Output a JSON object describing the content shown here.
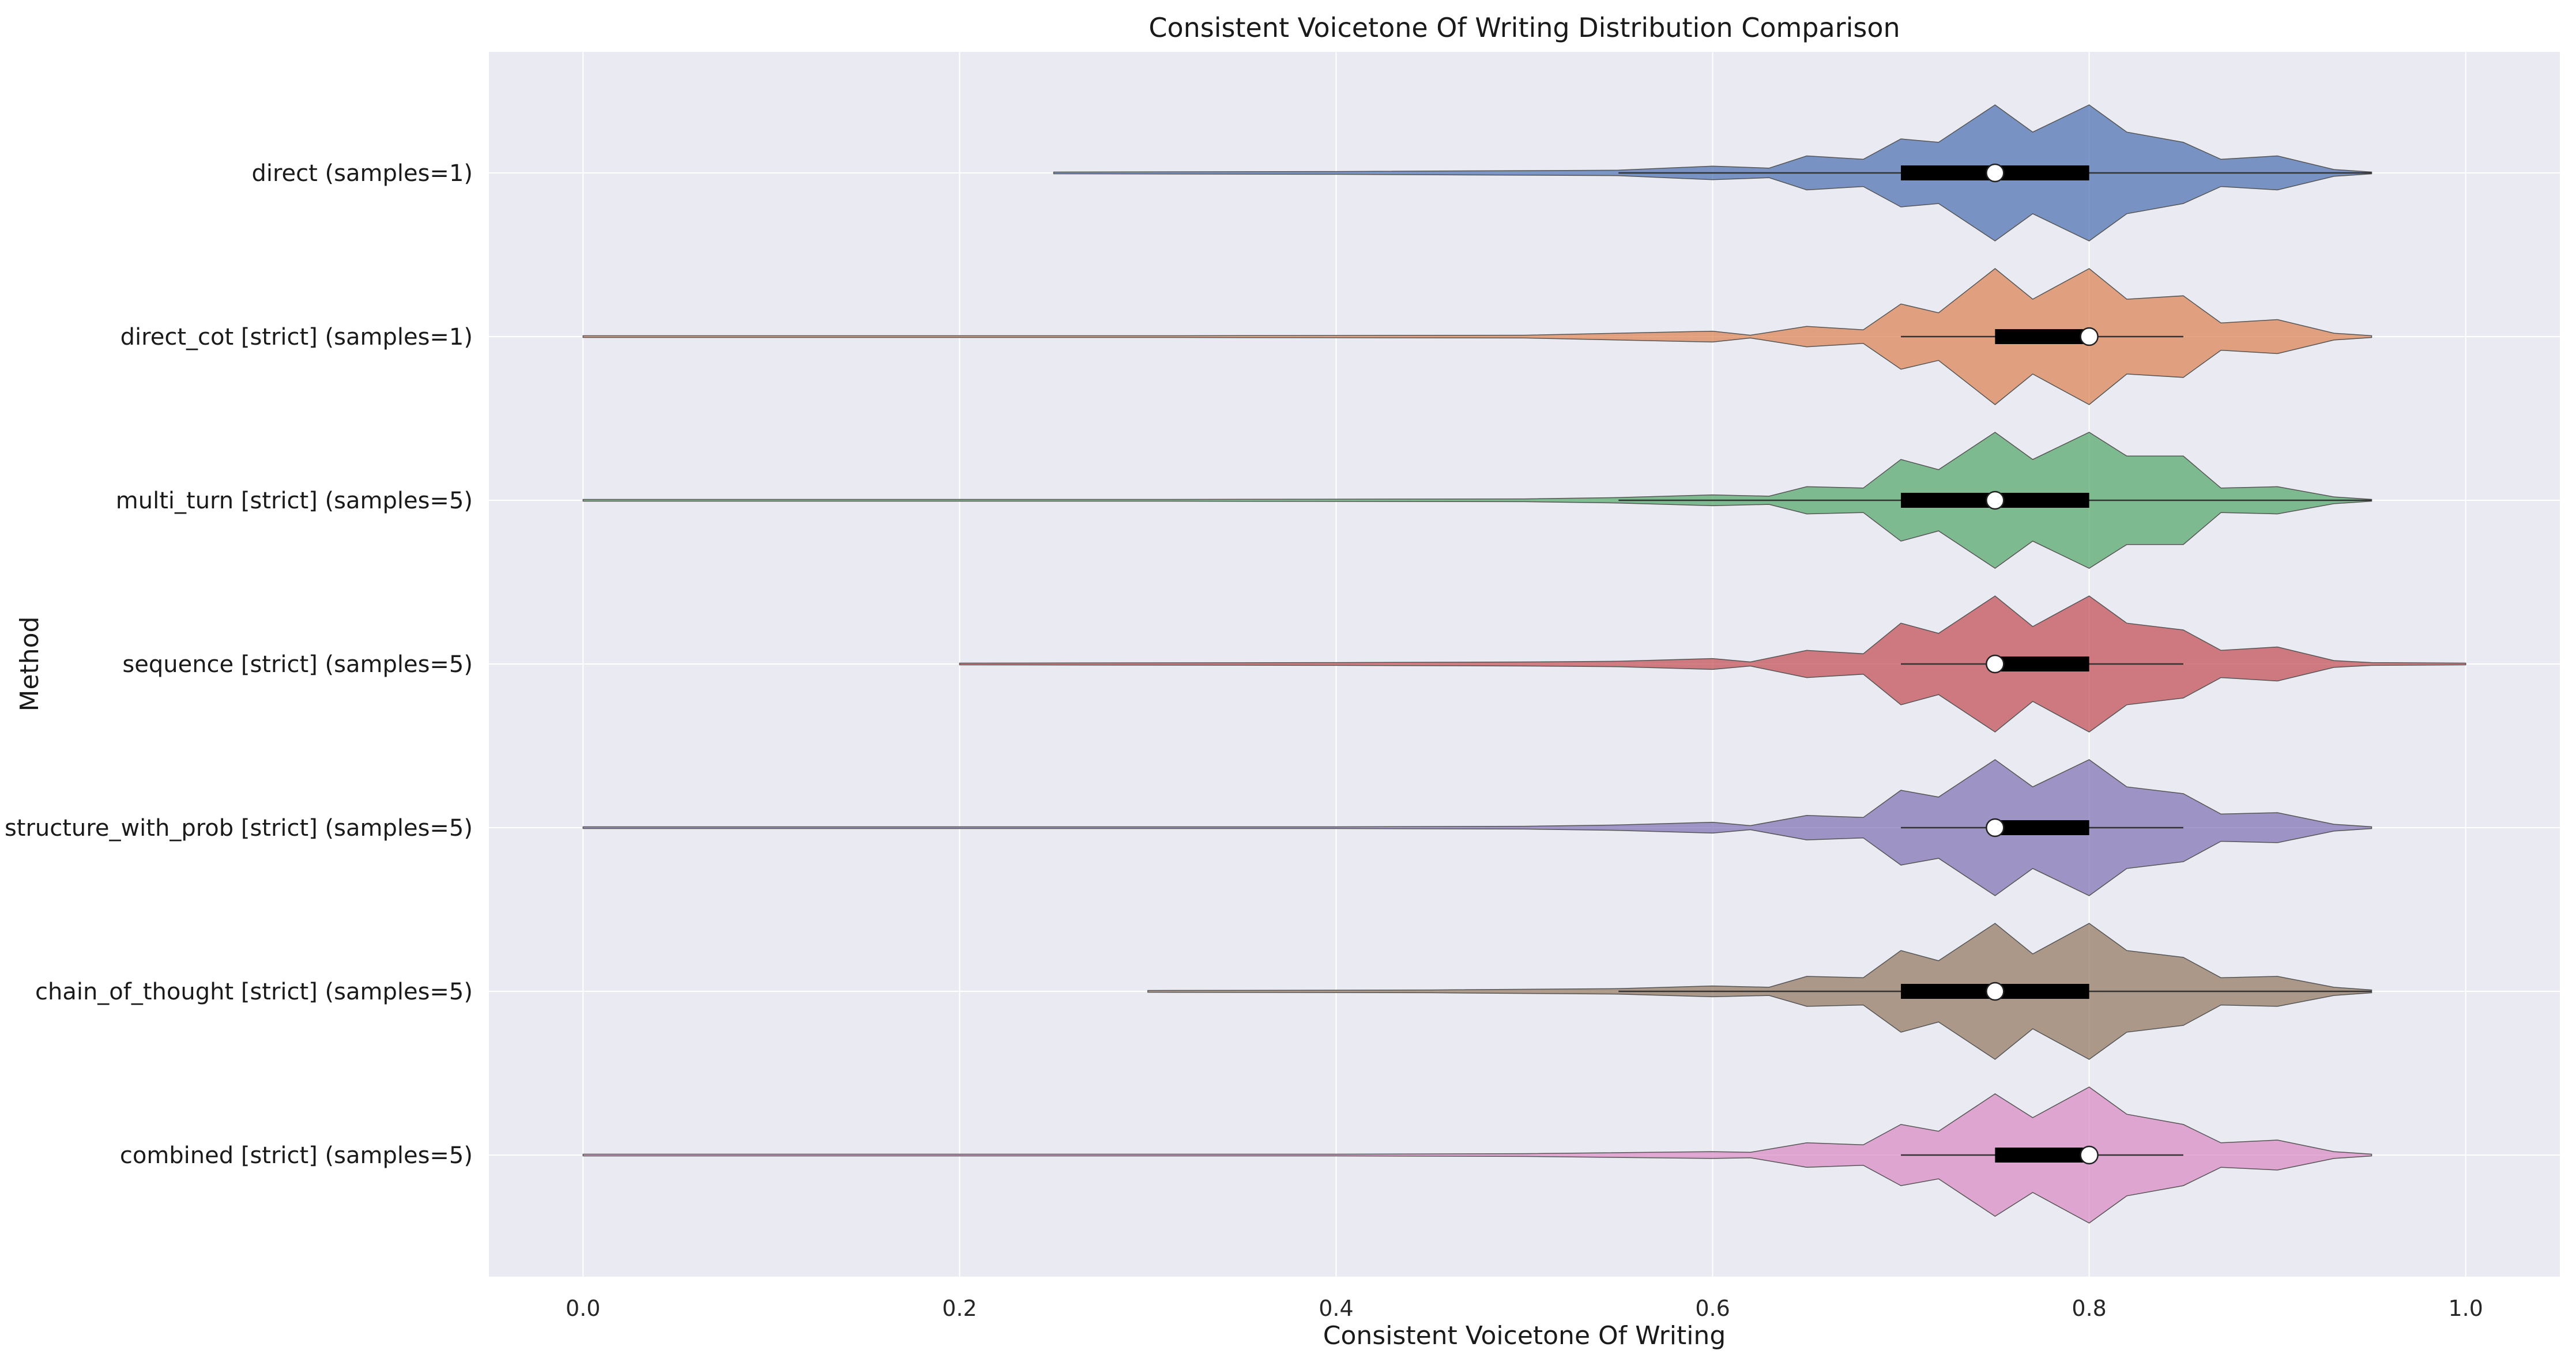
{
  "chart_data": {
    "type": "violin",
    "orientation": "horizontal",
    "title": "Consistent Voicetone Of Writing Distribution Comparison",
    "xlabel": "Consistent Voicetone Of Writing",
    "ylabel": "Method",
    "xlim": [
      -0.05,
      1.05
    ],
    "xticks": [
      0.0,
      0.2,
      0.4,
      0.6,
      0.8,
      1.0
    ],
    "xtick_labels": [
      "0.0",
      "0.2",
      "0.4",
      "0.6",
      "0.8",
      "1.0"
    ],
    "grid": true,
    "background": "#eaeaf2",
    "categories": [
      "direct (samples=1)",
      "direct_cot [strict] (samples=1)",
      "multi_turn [strict] (samples=5)",
      "sequence [strict] (samples=5)",
      "structure_with_prob [strict] (samples=5)",
      "chain_of_thought [strict] (samples=5)",
      "combined [strict] (samples=5)"
    ],
    "series": [
      {
        "color": "#4c72b0",
        "min": 0.25,
        "q1": 0.7,
        "median": 0.75,
        "q3": 0.8,
        "whisker_low": 0.55,
        "whisker_high": 0.95,
        "max": 0.95,
        "profile": [
          [
            0.25,
            0.01
          ],
          [
            0.4,
            0.02
          ],
          [
            0.55,
            0.04
          ],
          [
            0.6,
            0.1
          ],
          [
            0.63,
            0.07
          ],
          [
            0.65,
            0.25
          ],
          [
            0.68,
            0.2
          ],
          [
            0.7,
            0.5
          ],
          [
            0.72,
            0.45
          ],
          [
            0.75,
            1.0
          ],
          [
            0.77,
            0.6
          ],
          [
            0.8,
            1.0
          ],
          [
            0.82,
            0.6
          ],
          [
            0.85,
            0.45
          ],
          [
            0.87,
            0.2
          ],
          [
            0.9,
            0.25
          ],
          [
            0.93,
            0.05
          ],
          [
            0.95,
            0.01
          ]
        ]
      },
      {
        "color": "#dd8452",
        "min": 0.0,
        "q1": 0.75,
        "median": 0.8,
        "q3": 0.8,
        "whisker_low": 0.7,
        "whisker_high": 0.85,
        "max": 0.95,
        "profile": [
          [
            0.0,
            0.01
          ],
          [
            0.3,
            0.01
          ],
          [
            0.5,
            0.02
          ],
          [
            0.6,
            0.08
          ],
          [
            0.62,
            0.02
          ],
          [
            0.65,
            0.15
          ],
          [
            0.68,
            0.1
          ],
          [
            0.7,
            0.48
          ],
          [
            0.72,
            0.35
          ],
          [
            0.75,
            1.0
          ],
          [
            0.77,
            0.55
          ],
          [
            0.8,
            1.0
          ],
          [
            0.82,
            0.55
          ],
          [
            0.85,
            0.6
          ],
          [
            0.87,
            0.2
          ],
          [
            0.9,
            0.25
          ],
          [
            0.93,
            0.05
          ],
          [
            0.95,
            0.01
          ]
        ]
      },
      {
        "color": "#55a868",
        "min": 0.0,
        "q1": 0.7,
        "median": 0.75,
        "q3": 0.8,
        "whisker_low": 0.55,
        "whisker_high": 0.95,
        "max": 0.95,
        "profile": [
          [
            0.0,
            0.01
          ],
          [
            0.3,
            0.01
          ],
          [
            0.5,
            0.02
          ],
          [
            0.55,
            0.04
          ],
          [
            0.6,
            0.08
          ],
          [
            0.63,
            0.06
          ],
          [
            0.65,
            0.2
          ],
          [
            0.68,
            0.18
          ],
          [
            0.7,
            0.6
          ],
          [
            0.72,
            0.45
          ],
          [
            0.75,
            1.0
          ],
          [
            0.77,
            0.6
          ],
          [
            0.8,
            1.0
          ],
          [
            0.82,
            0.65
          ],
          [
            0.85,
            0.65
          ],
          [
            0.87,
            0.18
          ],
          [
            0.9,
            0.2
          ],
          [
            0.93,
            0.05
          ],
          [
            0.95,
            0.01
          ]
        ]
      },
      {
        "color": "#c44e52",
        "min": 0.2,
        "q1": 0.75,
        "median": 0.75,
        "q3": 0.8,
        "whisker_low": 0.7,
        "whisker_high": 0.85,
        "max": 1.0,
        "profile": [
          [
            0.2,
            0.01
          ],
          [
            0.4,
            0.02
          ],
          [
            0.5,
            0.03
          ],
          [
            0.55,
            0.04
          ],
          [
            0.6,
            0.08
          ],
          [
            0.62,
            0.03
          ],
          [
            0.65,
            0.2
          ],
          [
            0.68,
            0.15
          ],
          [
            0.7,
            0.6
          ],
          [
            0.72,
            0.45
          ],
          [
            0.75,
            1.0
          ],
          [
            0.77,
            0.55
          ],
          [
            0.8,
            1.0
          ],
          [
            0.82,
            0.6
          ],
          [
            0.85,
            0.5
          ],
          [
            0.87,
            0.2
          ],
          [
            0.9,
            0.25
          ],
          [
            0.93,
            0.05
          ],
          [
            0.95,
            0.02
          ],
          [
            1.0,
            0.01
          ]
        ]
      },
      {
        "color": "#8172b3",
        "min": 0.0,
        "q1": 0.75,
        "median": 0.75,
        "q3": 0.8,
        "whisker_low": 0.7,
        "whisker_high": 0.85,
        "max": 0.95,
        "profile": [
          [
            0.0,
            0.01
          ],
          [
            0.4,
            0.01
          ],
          [
            0.5,
            0.02
          ],
          [
            0.55,
            0.04
          ],
          [
            0.6,
            0.08
          ],
          [
            0.62,
            0.03
          ],
          [
            0.65,
            0.18
          ],
          [
            0.68,
            0.15
          ],
          [
            0.7,
            0.55
          ],
          [
            0.72,
            0.45
          ],
          [
            0.75,
            1.0
          ],
          [
            0.77,
            0.6
          ],
          [
            0.8,
            1.0
          ],
          [
            0.82,
            0.6
          ],
          [
            0.85,
            0.5
          ],
          [
            0.87,
            0.2
          ],
          [
            0.9,
            0.22
          ],
          [
            0.93,
            0.05
          ],
          [
            0.95,
            0.01
          ]
        ]
      },
      {
        "color": "#937860",
        "min": 0.3,
        "q1": 0.7,
        "median": 0.75,
        "q3": 0.8,
        "whisker_low": 0.55,
        "whisker_high": 0.95,
        "max": 0.95,
        "profile": [
          [
            0.3,
            0.01
          ],
          [
            0.45,
            0.02
          ],
          [
            0.55,
            0.04
          ],
          [
            0.6,
            0.08
          ],
          [
            0.63,
            0.06
          ],
          [
            0.65,
            0.22
          ],
          [
            0.68,
            0.2
          ],
          [
            0.7,
            0.6
          ],
          [
            0.72,
            0.45
          ],
          [
            0.75,
            1.0
          ],
          [
            0.77,
            0.55
          ],
          [
            0.8,
            1.0
          ],
          [
            0.82,
            0.6
          ],
          [
            0.85,
            0.5
          ],
          [
            0.87,
            0.2
          ],
          [
            0.9,
            0.22
          ],
          [
            0.93,
            0.06
          ],
          [
            0.95,
            0.02
          ]
        ]
      },
      {
        "color": "#da8bc3",
        "min": 0.0,
        "q1": 0.75,
        "median": 0.8,
        "q3": 0.8,
        "whisker_low": 0.7,
        "whisker_high": 0.85,
        "max": 0.95,
        "profile": [
          [
            0.0,
            0.01
          ],
          [
            0.4,
            0.01
          ],
          [
            0.5,
            0.02
          ],
          [
            0.6,
            0.05
          ],
          [
            0.62,
            0.04
          ],
          [
            0.65,
            0.18
          ],
          [
            0.68,
            0.15
          ],
          [
            0.7,
            0.45
          ],
          [
            0.72,
            0.35
          ],
          [
            0.75,
            0.9
          ],
          [
            0.77,
            0.55
          ],
          [
            0.8,
            1.0
          ],
          [
            0.82,
            0.6
          ],
          [
            0.85,
            0.45
          ],
          [
            0.87,
            0.18
          ],
          [
            0.9,
            0.22
          ],
          [
            0.93,
            0.05
          ],
          [
            0.95,
            0.01
          ]
        ]
      }
    ]
  }
}
